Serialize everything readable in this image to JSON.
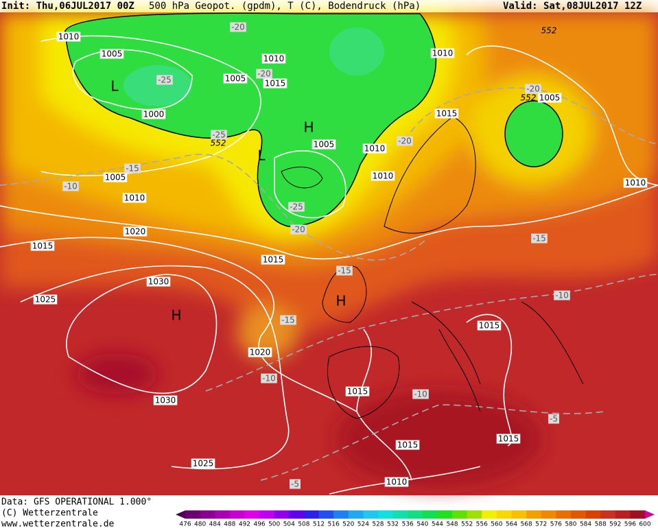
{
  "header": {
    "init": "Init: Thu,06JUL2017 00Z",
    "title": "500 hPa Geopot. (gpdm), T (C), Bodendruck (hPa)",
    "valid": "Valid: Sat,08JUL2017 12Z"
  },
  "isobar_labels": [
    1010,
    1005,
    1000,
    1010,
    1005,
    1015,
    1005,
    1010,
    1010,
    1010,
    1015,
    1005,
    1010,
    1005,
    1010,
    1020,
    1015,
    1015,
    1030,
    1025,
    1020,
    1015,
    1015,
    1030,
    1015,
    1015,
    1025,
    1010
  ],
  "temperature_labels": [
    -20,
    -25,
    -20,
    -25,
    -15,
    -10,
    -20,
    -20,
    -25,
    -20,
    -15,
    -15,
    -15,
    -10,
    -10,
    -10,
    -5,
    -5
  ],
  "geopotential_labels": [
    552,
    552,
    552
  ],
  "pressure_centers": [
    "L",
    "H",
    "L",
    "H",
    "H"
  ],
  "footer": [
    "Data: GFS OPERATIONAL 1.000°",
    "(C) Wetterzentrale",
    "www.wetterzentrale.de"
  ],
  "colorbar": {
    "ticks": [
      476,
      480,
      484,
      488,
      492,
      496,
      500,
      504,
      508,
      512,
      516,
      520,
      524,
      528,
      532,
      536,
      540,
      544,
      548,
      552,
      556,
      560,
      564,
      568,
      572,
      576,
      580,
      584,
      588,
      592,
      596,
      600
    ],
    "colors": [
      "#4b0050",
      "#6a0070",
      "#8a0090",
      "#a800b0",
      "#c800d0",
      "#e000e8",
      "#c000f0",
      "#9000f0",
      "#6000f0",
      "#3020f0",
      "#2050f0",
      "#2080f0",
      "#20a8f0",
      "#20c8f0",
      "#10e0e0",
      "#10e0b0",
      "#10e080",
      "#10e050",
      "#20e020",
      "#60e000",
      "#a0e000",
      "#f0f000",
      "#f8d800",
      "#f8c000",
      "#f0a000",
      "#f08800",
      "#e87000",
      "#e05800",
      "#d84000",
      "#c83020",
      "#b82020",
      "#a01020",
      "#d000a0"
    ]
  }
}
